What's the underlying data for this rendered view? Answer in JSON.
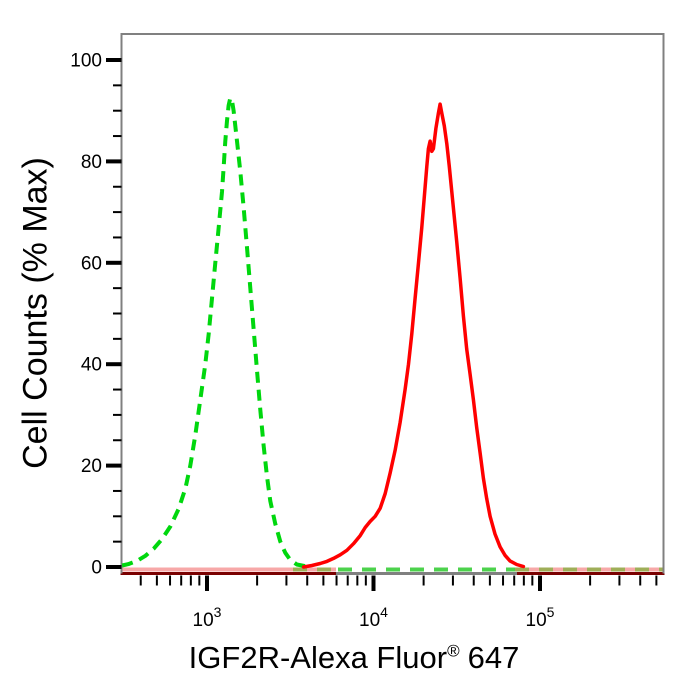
{
  "page": {
    "background": "#ffffff"
  },
  "chart_data": {
    "type": "line",
    "subtype": "flow-cytometry-overlay-histogram",
    "title": "",
    "ylabel": "Cell Counts (% Max)",
    "xlabel_parts": {
      "main": "IGF2R-Alexa Fluor",
      "reg": "®",
      "suffix": "647"
    },
    "x_scale": "log10",
    "xlim_log10": [
      2.49,
      5.745
    ],
    "ylim": [
      0,
      105
    ],
    "grid": false,
    "legend": "none",
    "y_major_ticks": [
      {
        "value": 0,
        "label": "0"
      },
      {
        "value": 20,
        "label": "20"
      },
      {
        "value": 40,
        "label": "40"
      },
      {
        "value": 60,
        "label": "60"
      },
      {
        "value": 80,
        "label": "80"
      },
      {
        "value": 100,
        "label": "100"
      }
    ],
    "y_minor_values": [
      5,
      10,
      15,
      25,
      30,
      35,
      45,
      50,
      55,
      65,
      70,
      75,
      85,
      90,
      95
    ],
    "x_major_ticks": [
      {
        "log": 3,
        "base": "10",
        "exp": "3"
      },
      {
        "log": 4,
        "base": "10",
        "exp": "4"
      },
      {
        "log": 5,
        "base": "10",
        "exp": "5"
      }
    ],
    "x_minor_ticks_log": [
      2.602,
      2.699,
      2.778,
      2.845,
      2.903,
      2.954,
      3.301,
      3.477,
      3.602,
      3.699,
      3.778,
      3.845,
      3.903,
      3.954,
      4.301,
      4.477,
      4.602,
      4.699,
      4.778,
      4.845,
      4.903,
      4.954,
      5.301,
      5.477,
      5.602,
      5.699
    ],
    "series": [
      {
        "name": "control-green-dashed",
        "style": "dashed",
        "color": "#00d70e",
        "peak": {
          "x": 1300,
          "pct_max": 92.5
        },
        "points_log10x_pct": [
          [
            2.49,
            0.3
          ],
          [
            2.53,
            0.6
          ],
          [
            2.58,
            1.2
          ],
          [
            2.63,
            2.2
          ],
          [
            2.68,
            3.6
          ],
          [
            2.73,
            5.5
          ],
          [
            2.78,
            8
          ],
          [
            2.83,
            11.5
          ],
          [
            2.87,
            15.5
          ],
          [
            2.9,
            20
          ],
          [
            2.93,
            26
          ],
          [
            2.96,
            33
          ],
          [
            2.99,
            40
          ],
          [
            3.01,
            46
          ],
          [
            3.03,
            53
          ],
          [
            3.05,
            60
          ],
          [
            3.07,
            67
          ],
          [
            3.09,
            74
          ],
          [
            3.1,
            79
          ],
          [
            3.11,
            84
          ],
          [
            3.12,
            88
          ],
          [
            3.13,
            91
          ],
          [
            3.14,
            92.5
          ],
          [
            3.15,
            92
          ],
          [
            3.16,
            90
          ],
          [
            3.17,
            87
          ],
          [
            3.18,
            84
          ],
          [
            3.2,
            78
          ],
          [
            3.22,
            71
          ],
          [
            3.24,
            63
          ],
          [
            3.26,
            55
          ],
          [
            3.28,
            47
          ],
          [
            3.3,
            39
          ],
          [
            3.32,
            31
          ],
          [
            3.34,
            24
          ],
          [
            3.36,
            18
          ],
          [
            3.38,
            13
          ],
          [
            3.41,
            8.5
          ],
          [
            3.44,
            5
          ],
          [
            3.47,
            2.8
          ],
          [
            3.5,
            1.4
          ],
          [
            3.54,
            0.5
          ],
          [
            3.6,
            0.1
          ]
        ]
      },
      {
        "name": "igf2r-red-solid",
        "style": "solid",
        "color": "#ff0000",
        "peak": {
          "x": 25000,
          "pct_max": 91.3
        },
        "points_log10x_pct": [
          [
            3.58,
            0
          ],
          [
            3.63,
            0.3
          ],
          [
            3.68,
            0.7
          ],
          [
            3.72,
            1.1
          ],
          [
            3.76,
            1.7
          ],
          [
            3.8,
            2.4
          ],
          [
            3.84,
            3.3
          ],
          [
            3.88,
            4.6
          ],
          [
            3.92,
            6.2
          ],
          [
            3.95,
            7.8
          ],
          [
            3.98,
            9
          ],
          [
            4.01,
            10
          ],
          [
            4.04,
            11.6
          ],
          [
            4.07,
            14.5
          ],
          [
            4.1,
            18.5
          ],
          [
            4.13,
            23
          ],
          [
            4.16,
            28.5
          ],
          [
            4.19,
            35
          ],
          [
            4.21,
            40
          ],
          [
            4.23,
            46
          ],
          [
            4.25,
            53
          ],
          [
            4.27,
            60
          ],
          [
            4.29,
            67
          ],
          [
            4.305,
            73
          ],
          [
            4.32,
            79
          ],
          [
            4.33,
            82.5
          ],
          [
            4.34,
            84
          ],
          [
            4.35,
            82
          ],
          [
            4.36,
            82.5
          ],
          [
            4.375,
            86.5
          ],
          [
            4.39,
            89.5
          ],
          [
            4.4,
            91.3
          ],
          [
            4.41,
            89.5
          ],
          [
            4.425,
            87
          ],
          [
            4.44,
            83.5
          ],
          [
            4.455,
            79
          ],
          [
            4.47,
            74
          ],
          [
            4.485,
            69
          ],
          [
            4.5,
            64
          ],
          [
            4.52,
            57
          ],
          [
            4.54,
            49.5
          ],
          [
            4.56,
            43
          ],
          [
            4.58,
            38
          ],
          [
            4.6,
            33
          ],
          [
            4.62,
            27.5
          ],
          [
            4.64,
            22.5
          ],
          [
            4.66,
            17.5
          ],
          [
            4.68,
            13.5
          ],
          [
            4.7,
            10
          ],
          [
            4.73,
            6.5
          ],
          [
            4.76,
            4
          ],
          [
            4.79,
            2.3
          ],
          [
            4.82,
            1.2
          ],
          [
            4.86,
            0.5
          ],
          [
            4.9,
            0.1
          ]
        ]
      }
    ],
    "colors": {
      "green_curve": "#00d70e",
      "green_baseline_bright": "#4cd24c",
      "green_baseline_olive": "#9fae58",
      "red_curve": "#ff0000",
      "red_baseline_pink": "#f7a8a8",
      "red_over_axis_maroon": "#7a0000",
      "frame_gray": "#808080",
      "tick_black": "#000000",
      "text_black": "#000000"
    }
  }
}
